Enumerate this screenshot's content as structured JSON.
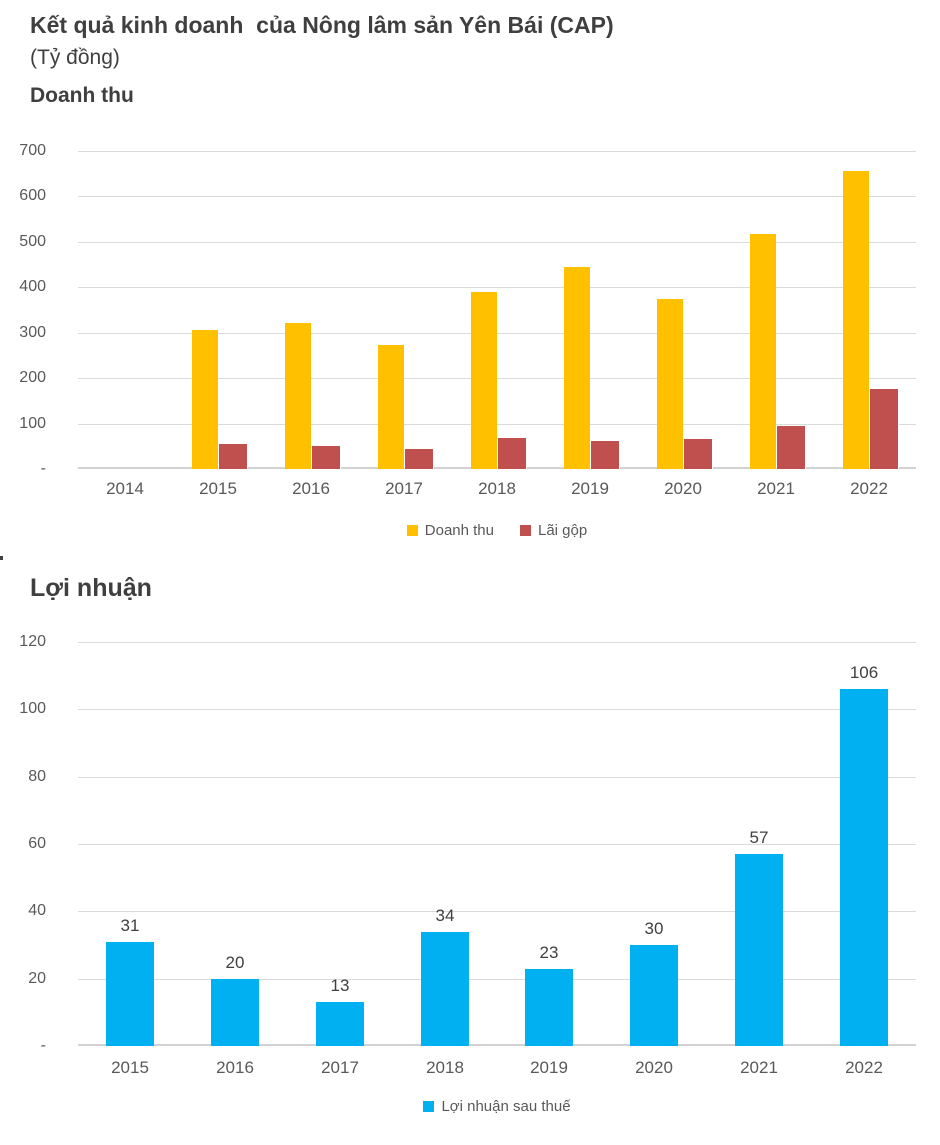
{
  "page": {
    "background": "#FFFFFF"
  },
  "header": {
    "title": "Kết quả kinh doanh  của Nông lâm sản Yên Bái (CAP)",
    "subtitle": "(Tỷ đồng)"
  },
  "colors": {
    "revenue_bar": "#FFC000",
    "gross_profit_bar": "#C0504D",
    "net_profit_bar": "#00B0F0",
    "gridline": "#DBDBDB",
    "axis_line": "#D2D2D2",
    "tick_text": "#595959",
    "title_text": "#3F3F3F",
    "value_label_text": "#404040"
  },
  "chart_data": [
    {
      "type": "bar",
      "title": "Doanh thu",
      "categories": [
        "2014",
        "2015",
        "2016",
        "2017",
        "2018",
        "2019",
        "2020",
        "2021",
        "2022"
      ],
      "series": [
        {
          "name": "Doanh thu",
          "color": "#FFC000",
          "values": [
            0,
            307,
            322,
            273,
            389,
            445,
            374,
            517,
            657
          ]
        },
        {
          "name": "Lãi gộp",
          "color": "#C0504D",
          "values": [
            0,
            57,
            52,
            46,
            71,
            64,
            69,
            97,
            178
          ]
        }
      ],
      "xlabel": "",
      "ylabel": "",
      "ylim": [
        0,
        700
      ],
      "ytick_step": 100,
      "zero_tick_label": "-",
      "grid": true,
      "data_labels": false,
      "legend_position": "bottom"
    },
    {
      "type": "bar",
      "title": "Lợi nhuận",
      "categories": [
        "2015",
        "2016",
        "2017",
        "2018",
        "2019",
        "2020",
        "2021",
        "2022"
      ],
      "series": [
        {
          "name": "Lợi nhuận sau thuế",
          "color": "#00B0F0",
          "values": [
            31,
            20,
            13,
            34,
            23,
            30,
            57,
            106
          ]
        }
      ],
      "xlabel": "",
      "ylabel": "",
      "ylim": [
        0,
        120
      ],
      "ytick_step": 20,
      "zero_tick_label": "-",
      "grid": true,
      "data_labels": true,
      "legend_position": "bottom"
    }
  ]
}
